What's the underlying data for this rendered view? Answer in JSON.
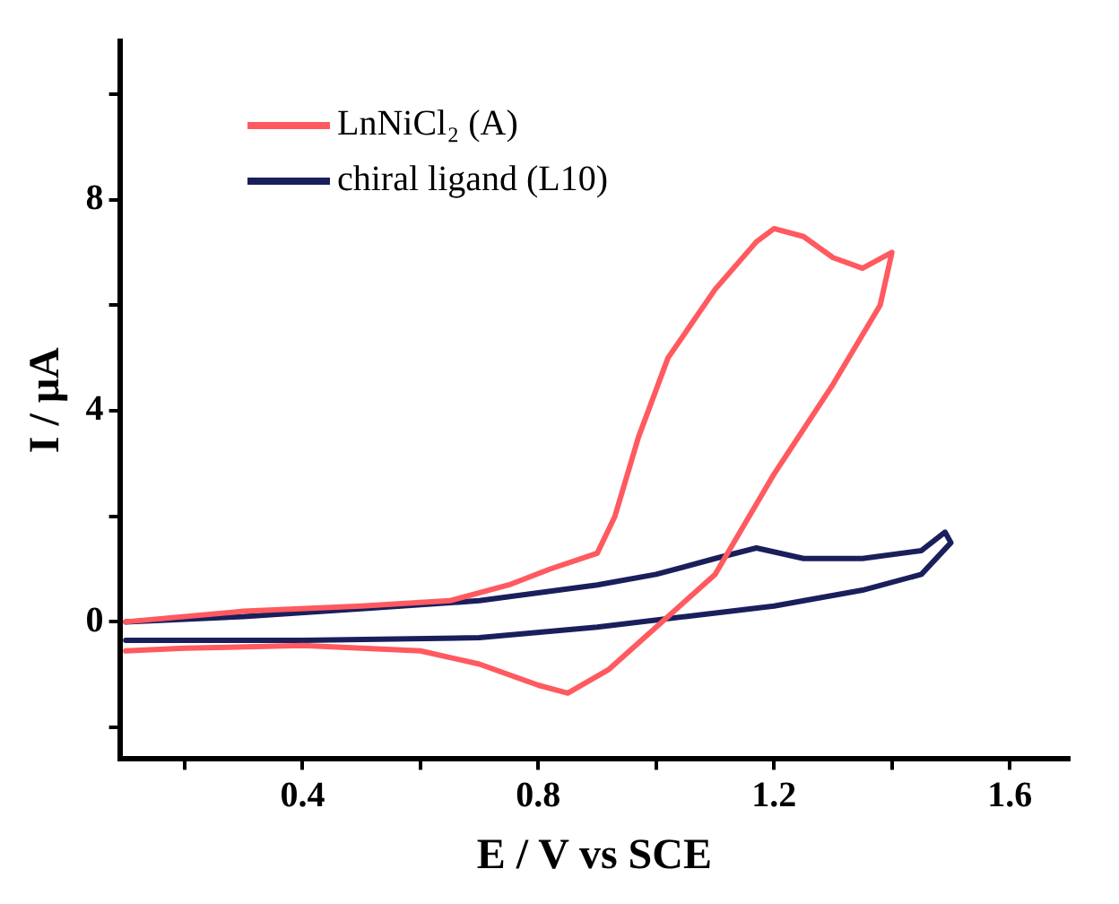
{
  "chart_data": {
    "type": "line",
    "xlabel": "E / V vs SCE",
    "ylabel": "I / μA",
    "xlim": [
      0.09,
      1.7
    ],
    "ylim": [
      -2.6,
      11
    ],
    "xticks": [
      {
        "value": 0.2,
        "label": null
      },
      0.4,
      {
        "value": 0.6,
        "label": null
      },
      0.8,
      {
        "value": 1.0,
        "label": null
      },
      1.2,
      {
        "value": 1.4,
        "label": null
      },
      1.6
    ],
    "yticks": [
      {
        "value": -2,
        "label": null
      },
      0,
      {
        "value": 2,
        "label": null
      },
      4,
      {
        "value": 6,
        "label": null
      },
      8,
      {
        "value": 10,
        "label": null
      }
    ],
    "grid": false,
    "legend": "top left",
    "marker": "none",
    "line_style": "solid",
    "series": [
      {
        "name": "LnNiCl₂ (A)",
        "color": "#ff5a5f",
        "x": [
          0.1,
          0.3,
          0.5,
          0.65,
          0.75,
          0.82,
          0.9,
          0.93,
          0.97,
          1.02,
          1.1,
          1.17,
          1.2,
          1.25,
          1.3,
          1.35,
          1.4,
          1.38,
          1.3,
          1.2,
          1.1,
          1.0,
          0.92,
          0.85,
          0.8,
          0.7,
          0.6,
          0.4,
          0.2,
          0.1
        ],
        "values": [
          0,
          0.2,
          0.3,
          0.4,
          0.7,
          1.0,
          1.3,
          2.0,
          3.5,
          5.0,
          6.3,
          7.2,
          7.45,
          7.3,
          6.9,
          6.7,
          7.0,
          6.0,
          4.5,
          2.8,
          0.9,
          -0.1,
          -0.9,
          -1.35,
          -1.2,
          -0.8,
          -0.55,
          -0.45,
          -0.5,
          -0.55
        ]
      },
      {
        "name": "chiral ligand (L10)",
        "color": "#1a1f5c",
        "x": [
          0.1,
          0.4,
          0.7,
          0.9,
          1.05,
          1.2,
          1.35,
          1.45,
          1.5,
          1.49,
          1.45,
          1.35,
          1.25,
          1.17,
          1.1,
          1.0,
          0.9,
          0.8,
          0.7,
          0.5,
          0.3,
          0.1
        ],
        "values": [
          -0.35,
          -0.35,
          -0.3,
          -0.1,
          0.1,
          0.3,
          0.6,
          0.9,
          1.5,
          1.7,
          1.35,
          1.2,
          1.2,
          1.4,
          1.2,
          0.9,
          0.7,
          0.55,
          0.4,
          0.25,
          0.1,
          0.0
        ]
      }
    ]
  }
}
